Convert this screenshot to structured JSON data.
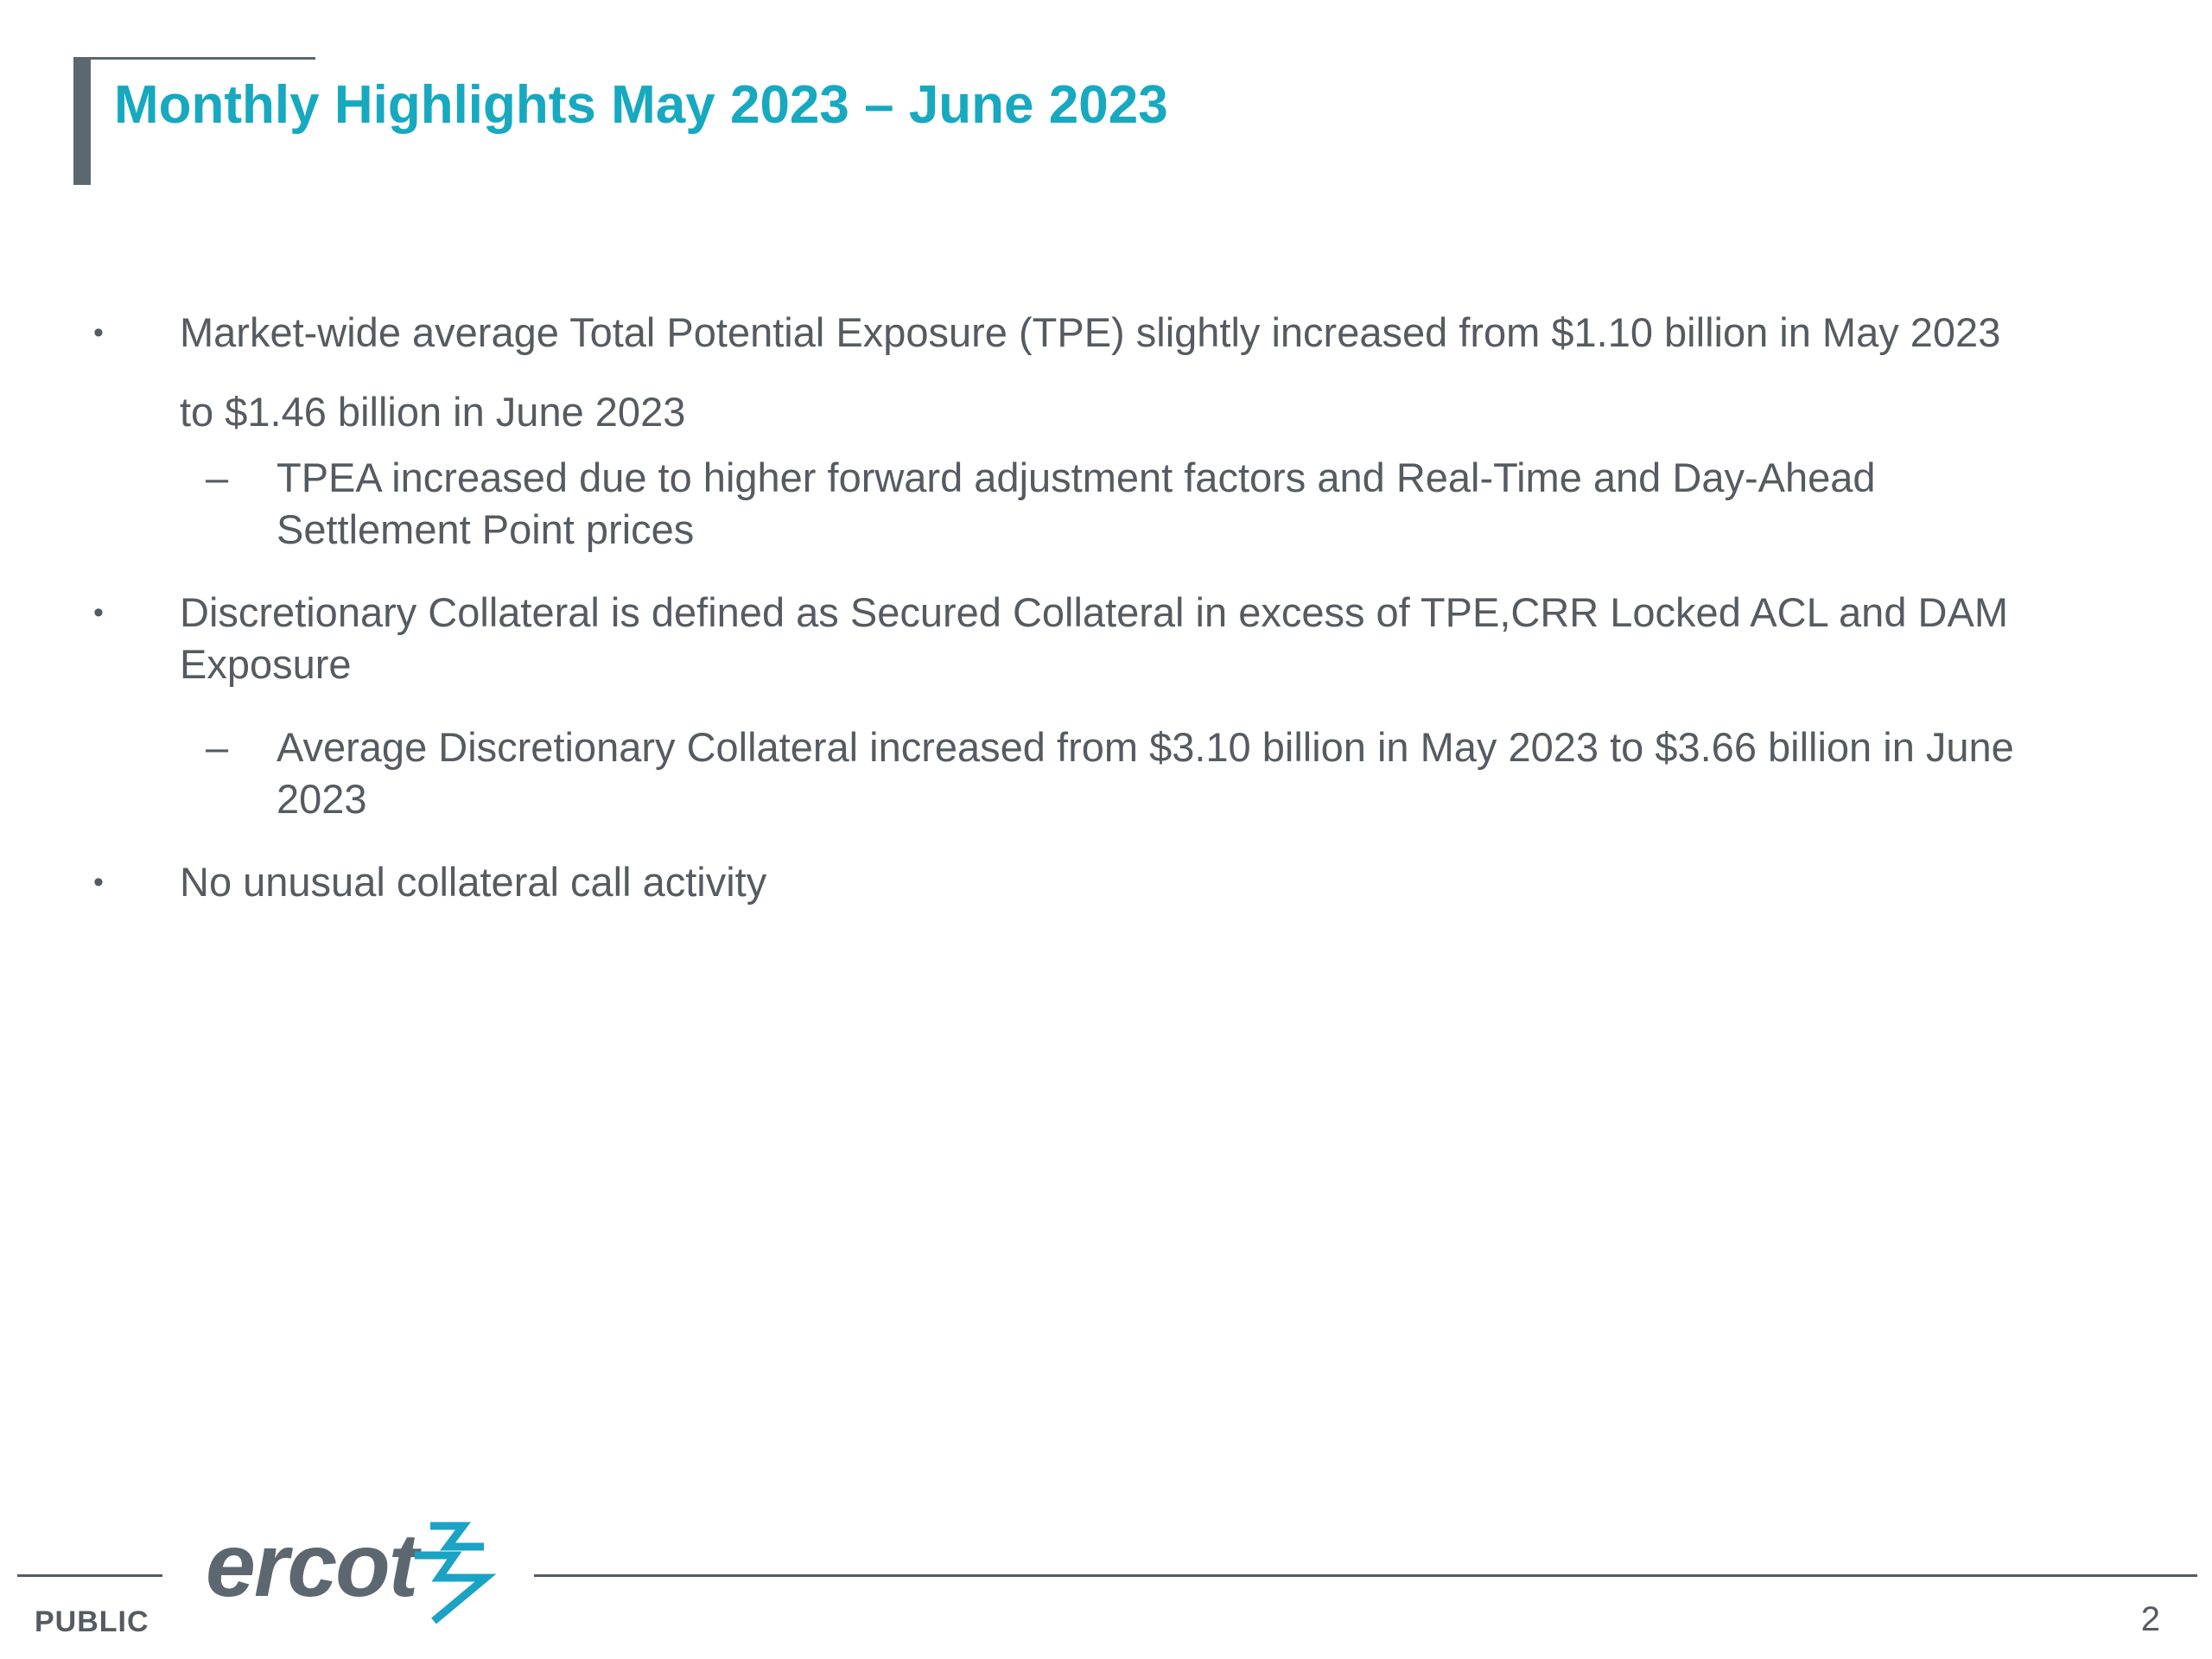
{
  "title": "Monthly Highlights May 2023 – June 2023",
  "bullets": [
    {
      "marker": "•",
      "line1": "Market-wide average Total Potential Exposure (TPE) slightly increased from $1.10 billion in May 2023",
      "line2": "to $1.46 billion in June 2023",
      "sub": {
        "marker": "–",
        "line1": "TPEA increased due to higher forward adjustment factors and Real-Time and Day-Ahead",
        "line2": "Settlement Point prices"
      }
    },
    {
      "marker": "•",
      "line1": "Discretionary Collateral is defined as Secured Collateral in excess of TPE,CRR Locked ACL and DAM",
      "line2": "Exposure",
      "sub": {
        "marker": "–",
        "line1": "Average Discretionary Collateral increased from $3.10 billion in May 2023 to $3.66 billion in June",
        "line2": "2023"
      }
    },
    {
      "marker": "•",
      "line1": "No unusual collateral call activity"
    }
  ],
  "footer": {
    "classification": "PUBLIC",
    "logo_text": "ercot",
    "page_number": "2"
  },
  "colors": {
    "title": "#16a9c0",
    "body_text": "#555b61",
    "accent_bar": "#5d6770",
    "logo_mark": "#1aa3c4"
  }
}
